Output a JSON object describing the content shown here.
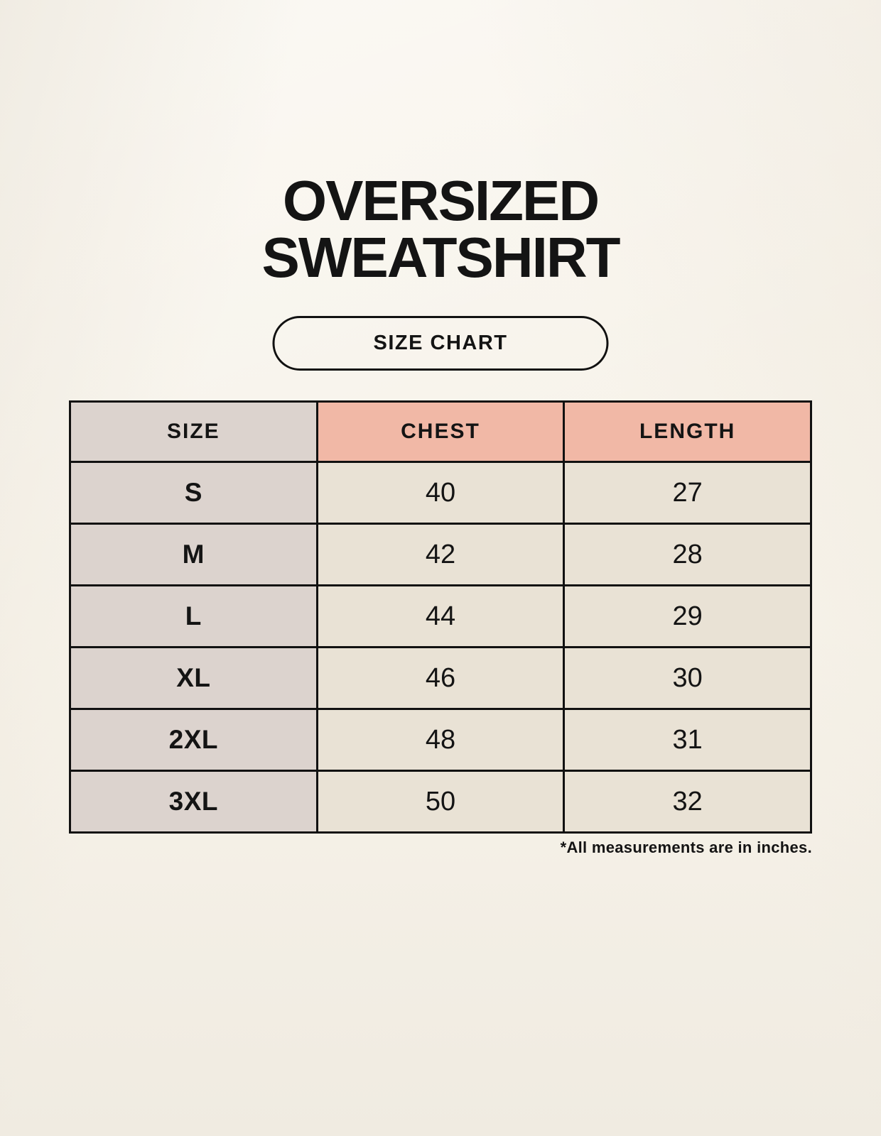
{
  "title": {
    "line1": "OVERSIZED",
    "line2": "SWEATSHIRT"
  },
  "badge": {
    "label": "SIZE CHART"
  },
  "footnote": "*All measurements are in inches.",
  "colors": {
    "page-bg": "#F7F3EA",
    "cell-gray": "#DCD3CE",
    "cell-salmon": "#F1B8A6",
    "cell-cream": "#E9E2D5",
    "border": "#111111",
    "text": "#141414"
  },
  "chart_data": {
    "type": "table",
    "title": "OVERSIZED SWEATSHIRT",
    "subtitle": "SIZE CHART",
    "columns": [
      "SIZE",
      "CHEST",
      "LENGTH"
    ],
    "rows": [
      [
        "S",
        "40",
        "27"
      ],
      [
        "M",
        "42",
        "28"
      ],
      [
        "L",
        "44",
        "29"
      ],
      [
        "XL",
        "46",
        "30"
      ],
      [
        "2XL",
        "48",
        "31"
      ],
      [
        "3XL",
        "50",
        "32"
      ]
    ],
    "units": "inches"
  }
}
